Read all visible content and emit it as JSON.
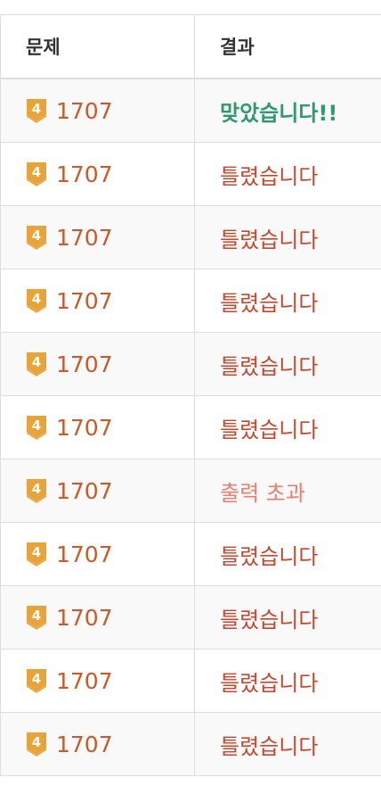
{
  "table": {
    "headers": [
      "문제",
      "결과"
    ],
    "rows": [
      {
        "tier": "4",
        "problem": "1707",
        "result": "맞았습니다!!",
        "status": "ac"
      },
      {
        "tier": "4",
        "problem": "1707",
        "result": "틀렸습니다",
        "status": "wa"
      },
      {
        "tier": "4",
        "problem": "1707",
        "result": "틀렸습니다",
        "status": "wa"
      },
      {
        "tier": "4",
        "problem": "1707",
        "result": "틀렸습니다",
        "status": "wa"
      },
      {
        "tier": "4",
        "problem": "1707",
        "result": "틀렸습니다",
        "status": "wa"
      },
      {
        "tier": "4",
        "problem": "1707",
        "result": "틀렸습니다",
        "status": "wa"
      },
      {
        "tier": "4",
        "problem": "1707",
        "result": "출력 초과",
        "status": "ole"
      },
      {
        "tier": "4",
        "problem": "1707",
        "result": "틀렸습니다",
        "status": "wa"
      },
      {
        "tier": "4",
        "problem": "1707",
        "result": "틀렸습니다",
        "status": "wa"
      },
      {
        "tier": "4",
        "problem": "1707",
        "result": "틀렸습니다",
        "status": "wa"
      },
      {
        "tier": "4",
        "problem": "1707",
        "result": "틀렸습니다",
        "status": "wa"
      }
    ]
  },
  "colors": {
    "tier_badge": "#e8a33a",
    "problem_link": "#c95b2a",
    "accepted": "#2e9a6d",
    "wrong": "#c9462c",
    "output_limit": "#f07d6e"
  },
  "icons": {
    "tier_badge": "gold-tier-icon"
  }
}
